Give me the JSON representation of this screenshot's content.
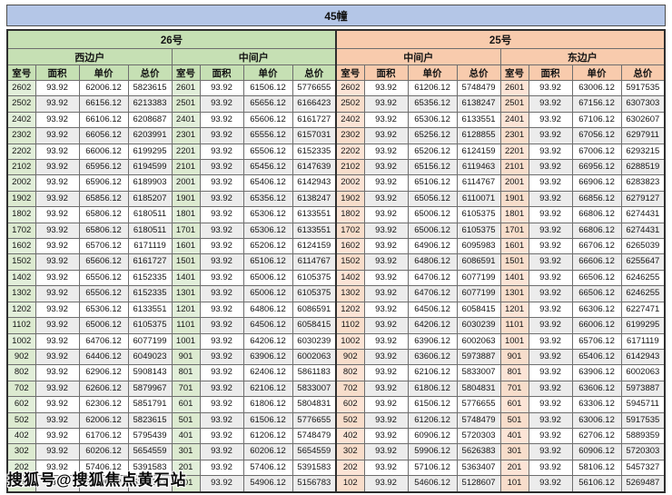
{
  "watermark": "搜狐号@搜狐焦点黄石站",
  "colors": {
    "title_bg": "#b4c6e7",
    "building26_bg": "#c6e0b4",
    "building26_room_bg": "#e2efda",
    "building25_bg": "#f8cbad",
    "building25_room_bg": "#fce4d6",
    "stripe_bg": "#ececec",
    "border": "#6e6e6e"
  },
  "chart_data": {
    "type": "table",
    "title": "45幢",
    "groups": [
      {
        "name": "26号",
        "units": [
          "西边户",
          "中间户"
        ]
      },
      {
        "name": "25号",
        "units": [
          "中间户",
          "东边户"
        ]
      }
    ],
    "column_headers": [
      "室号",
      "面积",
      "单价",
      "总价"
    ],
    "rows": [
      [
        "2602",
        "93.92",
        "62006.12",
        "5823615",
        "2601",
        "93.92",
        "61506.12",
        "5776655",
        "2602",
        "93.92",
        "61206.12",
        "5748479",
        "2601",
        "93.92",
        "63006.12",
        "5917535"
      ],
      [
        "2502",
        "93.92",
        "66156.12",
        "6213383",
        "2501",
        "93.92",
        "65656.12",
        "6166423",
        "2502",
        "93.92",
        "65356.12",
        "6138247",
        "2501",
        "93.92",
        "67156.12",
        "6307303"
      ],
      [
        "2402",
        "93.92",
        "66106.12",
        "6208687",
        "2401",
        "93.92",
        "65606.12",
        "6161727",
        "2402",
        "93.92",
        "65306.12",
        "6133551",
        "2401",
        "93.92",
        "67106.12",
        "6302607"
      ],
      [
        "2302",
        "93.92",
        "66056.12",
        "6203991",
        "2301",
        "93.92",
        "65556.12",
        "6157031",
        "2302",
        "93.92",
        "65256.12",
        "6128855",
        "2301",
        "93.92",
        "67056.12",
        "6297911"
      ],
      [
        "2202",
        "93.92",
        "66006.12",
        "6199295",
        "2201",
        "93.92",
        "65506.12",
        "6152335",
        "2202",
        "93.92",
        "65206.12",
        "6124159",
        "2201",
        "93.92",
        "67006.12",
        "6293215"
      ],
      [
        "2102",
        "93.92",
        "65956.12",
        "6194599",
        "2101",
        "93.92",
        "65456.12",
        "6147639",
        "2102",
        "93.92",
        "65156.12",
        "6119463",
        "2101",
        "93.92",
        "66956.12",
        "6288519"
      ],
      [
        "2002",
        "93.92",
        "65906.12",
        "6189903",
        "2001",
        "93.92",
        "65406.12",
        "6142943",
        "2002",
        "93.92",
        "65106.12",
        "6114767",
        "2001",
        "93.92",
        "66906.12",
        "6283823"
      ],
      [
        "1902",
        "93.92",
        "65856.12",
        "6185207",
        "1901",
        "93.92",
        "65356.12",
        "6138247",
        "1902",
        "93.92",
        "65056.12",
        "6110071",
        "1901",
        "93.92",
        "66856.12",
        "6279127"
      ],
      [
        "1802",
        "93.92",
        "65806.12",
        "6180511",
        "1801",
        "93.92",
        "65306.12",
        "6133551",
        "1802",
        "93.92",
        "65006.12",
        "6105375",
        "1801",
        "93.92",
        "66806.12",
        "6274431"
      ],
      [
        "1702",
        "93.92",
        "65806.12",
        "6180511",
        "1701",
        "93.92",
        "65306.12",
        "6133551",
        "1702",
        "93.92",
        "65006.12",
        "6105375",
        "1701",
        "93.92",
        "66806.12",
        "6274431"
      ],
      [
        "1602",
        "93.92",
        "65706.12",
        "6171119",
        "1601",
        "93.92",
        "65206.12",
        "6124159",
        "1602",
        "93.92",
        "64906.12",
        "6095983",
        "1601",
        "93.92",
        "66706.12",
        "6265039"
      ],
      [
        "1502",
        "93.92",
        "65606.12",
        "6161727",
        "1501",
        "93.92",
        "65106.12",
        "6114767",
        "1502",
        "93.92",
        "64806.12",
        "6086591",
        "1501",
        "93.92",
        "66606.12",
        "6255647"
      ],
      [
        "1402",
        "93.92",
        "65506.12",
        "6152335",
        "1401",
        "93.92",
        "65006.12",
        "6105375",
        "1402",
        "93.92",
        "64706.12",
        "6077199",
        "1401",
        "93.92",
        "66506.12",
        "6246255"
      ],
      [
        "1302",
        "93.92",
        "65506.12",
        "6152335",
        "1301",
        "93.92",
        "65006.12",
        "6105375",
        "1302",
        "93.92",
        "64706.12",
        "6077199",
        "1301",
        "93.92",
        "66506.12",
        "6246255"
      ],
      [
        "1202",
        "93.92",
        "65306.12",
        "6133551",
        "1201",
        "93.92",
        "64806.12",
        "6086591",
        "1202",
        "93.92",
        "64506.12",
        "6058415",
        "1201",
        "93.92",
        "66306.12",
        "6227471"
      ],
      [
        "1102",
        "93.92",
        "65006.12",
        "6105375",
        "1101",
        "93.92",
        "64506.12",
        "6058415",
        "1102",
        "93.92",
        "64206.12",
        "6030239",
        "1101",
        "93.92",
        "66006.12",
        "6199295"
      ],
      [
        "1002",
        "93.92",
        "64706.12",
        "6077199",
        "1001",
        "93.92",
        "64206.12",
        "6030239",
        "1002",
        "93.92",
        "63906.12",
        "6002063",
        "1001",
        "93.92",
        "65706.12",
        "6171119"
      ],
      [
        "902",
        "93.92",
        "64406.12",
        "6049023",
        "901",
        "93.92",
        "63906.12",
        "6002063",
        "902",
        "93.92",
        "63606.12",
        "5973887",
        "901",
        "93.92",
        "65406.12",
        "6142943"
      ],
      [
        "802",
        "93.92",
        "62906.12",
        "5908143",
        "801",
        "93.92",
        "62406.12",
        "5861183",
        "802",
        "93.92",
        "62106.12",
        "5833007",
        "801",
        "93.92",
        "63906.12",
        "6002063"
      ],
      [
        "702",
        "93.92",
        "62606.12",
        "5879967",
        "701",
        "93.92",
        "62106.12",
        "5833007",
        "702",
        "93.92",
        "61806.12",
        "5804831",
        "701",
        "93.92",
        "63606.12",
        "5973887"
      ],
      [
        "602",
        "93.92",
        "62306.12",
        "5851791",
        "601",
        "93.92",
        "61806.12",
        "5804831",
        "602",
        "93.92",
        "61506.12",
        "5776655",
        "601",
        "93.92",
        "63306.12",
        "5945711"
      ],
      [
        "502",
        "93.92",
        "62006.12",
        "5823615",
        "501",
        "93.92",
        "61506.12",
        "5776655",
        "502",
        "93.92",
        "61206.12",
        "5748479",
        "501",
        "93.92",
        "63006.12",
        "5917535"
      ],
      [
        "402",
        "93.92",
        "61706.12",
        "5795439",
        "401",
        "93.92",
        "61206.12",
        "5748479",
        "402",
        "93.92",
        "60906.12",
        "5720303",
        "401",
        "93.92",
        "62706.12",
        "5889359"
      ],
      [
        "302",
        "93.92",
        "60206.12",
        "5654559",
        "301",
        "93.92",
        "60206.12",
        "5654559",
        "302",
        "93.92",
        "59906.12",
        "5626383",
        "301",
        "93.92",
        "60906.12",
        "5720303"
      ],
      [
        "202",
        "93.92",
        "57406.12",
        "5391583",
        "201",
        "93.92",
        "57406.12",
        "5391583",
        "202",
        "93.92",
        "57106.12",
        "5363407",
        "201",
        "93.92",
        "58106.12",
        "5457327"
      ],
      [
        "102",
        "93.92",
        "55406.12",
        "5203743",
        "101",
        "93.92",
        "54906.12",
        "5156783",
        "102",
        "93.92",
        "54606.12",
        "5128607",
        "101",
        "93.92",
        "56106.12",
        "5269487"
      ]
    ]
  }
}
